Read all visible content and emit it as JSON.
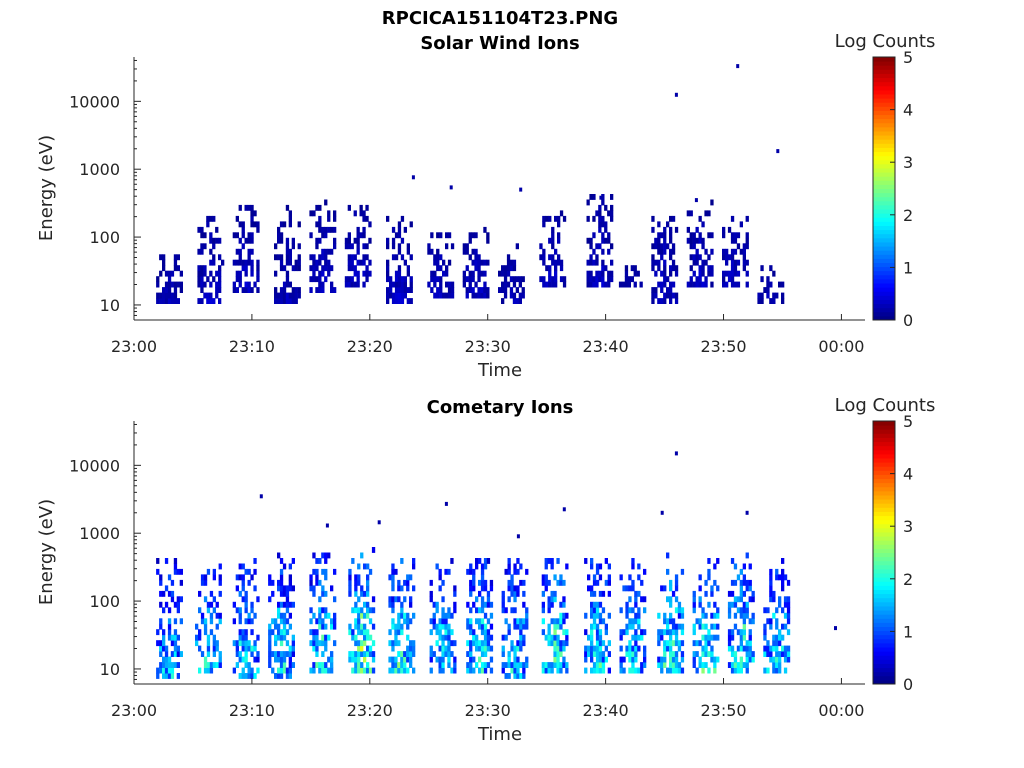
{
  "figure": {
    "title": "RPCICA151104T23.PNG"
  },
  "chart_data": [
    {
      "type": "heatmap",
      "title": "Solar Wind Ions",
      "xlabel": "Time",
      "ylabel": "Energy (eV)",
      "xticks": [
        "23:00",
        "23:10",
        "23:20",
        "23:30",
        "23:40",
        "23:50",
        "00:00"
      ],
      "xlim_minutes": [
        0,
        62
      ],
      "yscale": "log",
      "yticks": [
        "10",
        "100",
        "1000",
        "10000"
      ],
      "ylim": [
        6,
        45000
      ],
      "colorbar": {
        "label": "Log Counts",
        "range": [
          0,
          5
        ],
        "ticks": [
          "0",
          "1",
          "2",
          "3",
          "4",
          "5"
        ],
        "colormap": "jet"
      },
      "bursts": [
        {
          "t": 3.0,
          "lo": 11,
          "hi": 55,
          "level": 0.25
        },
        {
          "t": 6.5,
          "lo": 11,
          "hi": 200,
          "level": 0.3
        },
        {
          "t": 9.5,
          "lo": 15,
          "hi": 300,
          "level": 0.3
        },
        {
          "t": 13.0,
          "lo": 11,
          "hi": 280,
          "level": 0.25
        },
        {
          "t": 16.0,
          "lo": 15,
          "hi": 330,
          "level": 0.3
        },
        {
          "t": 19.0,
          "lo": 20,
          "hi": 310,
          "level": 0.3
        },
        {
          "t": 22.5,
          "lo": 11,
          "hi": 200,
          "level": 0.3
        },
        {
          "t": 26.0,
          "lo": 13,
          "hi": 110,
          "level": 0.3
        },
        {
          "t": 29.0,
          "lo": 13,
          "hi": 180,
          "level": 0.3
        },
        {
          "t": 32.0,
          "lo": 11,
          "hi": 85,
          "level": 0.25
        },
        {
          "t": 35.5,
          "lo": 17,
          "hi": 260,
          "level": 0.3
        },
        {
          "t": 39.5,
          "lo": 17,
          "hi": 420,
          "level": 0.3
        },
        {
          "t": 42.0,
          "lo": 17,
          "hi": 40,
          "level": 0.25
        },
        {
          "t": 45.0,
          "lo": 11,
          "hi": 220,
          "level": 0.3
        },
        {
          "t": 48.0,
          "lo": 17,
          "hi": 350,
          "level": 0.3
        },
        {
          "t": 51.0,
          "lo": 17,
          "hi": 260,
          "level": 0.3
        },
        {
          "t": 54.0,
          "lo": 11,
          "hi": 40,
          "level": 0.25
        }
      ],
      "points": [
        {
          "t": 46.0,
          "e": 12500
        },
        {
          "t": 51.2,
          "e": 33000
        },
        {
          "t": 54.6,
          "e": 1850
        },
        {
          "t": 23.7,
          "e": 760
        },
        {
          "t": 26.9,
          "e": 540
        },
        {
          "t": 32.8,
          "e": 500
        },
        {
          "t": 39.6,
          "e": 380
        },
        {
          "t": 47.7,
          "e": 350
        }
      ]
    },
    {
      "type": "heatmap",
      "title": "Cometary Ions",
      "xlabel": "Time",
      "ylabel": "Energy (eV)",
      "xticks": [
        "23:00",
        "23:10",
        "23:20",
        "23:30",
        "23:40",
        "23:50",
        "00:00"
      ],
      "xlim_minutes": [
        0,
        62
      ],
      "yscale": "log",
      "yticks": [
        "10",
        "100",
        "1000",
        "10000"
      ],
      "ylim": [
        6,
        45000
      ],
      "colorbar": {
        "label": "Log Counts",
        "range": [
          0,
          5
        ],
        "ticks": [
          "0",
          "1",
          "2",
          "3",
          "4",
          "5"
        ],
        "colormap": "jet"
      },
      "bursts": [
        {
          "t": 3.0,
          "lo": 7,
          "hi": 420,
          "level": 1.2
        },
        {
          "t": 6.3,
          "lo": 8,
          "hi": 330,
          "level": 1.4
        },
        {
          "t": 9.5,
          "lo": 7,
          "hi": 500,
          "level": 1.4
        },
        {
          "t": 12.5,
          "lo": 7,
          "hi": 520,
          "level": 1.3
        },
        {
          "t": 16.0,
          "lo": 8,
          "hi": 520,
          "level": 1.5
        },
        {
          "t": 19.3,
          "lo": 8,
          "hi": 650,
          "level": 1.8
        },
        {
          "t": 22.7,
          "lo": 8,
          "hi": 560,
          "level": 1.6
        },
        {
          "t": 26.2,
          "lo": 8,
          "hi": 420,
          "level": 1.5
        },
        {
          "t": 29.3,
          "lo": 8,
          "hi": 420,
          "level": 1.5
        },
        {
          "t": 32.3,
          "lo": 7,
          "hi": 420,
          "level": 1.3
        },
        {
          "t": 35.7,
          "lo": 9,
          "hi": 560,
          "level": 1.7
        },
        {
          "t": 39.3,
          "lo": 9,
          "hi": 560,
          "level": 1.5
        },
        {
          "t": 42.3,
          "lo": 9,
          "hi": 460,
          "level": 1.4
        },
        {
          "t": 45.5,
          "lo": 8,
          "hi": 560,
          "level": 1.6
        },
        {
          "t": 48.5,
          "lo": 8,
          "hi": 420,
          "level": 1.7
        },
        {
          "t": 51.5,
          "lo": 8,
          "hi": 560,
          "level": 1.7
        },
        {
          "t": 54.5,
          "lo": 8,
          "hi": 420,
          "level": 1.4
        }
      ],
      "points": [
        {
          "t": 10.8,
          "e": 3500
        },
        {
          "t": 16.4,
          "e": 1300
        },
        {
          "t": 20.8,
          "e": 1450
        },
        {
          "t": 26.5,
          "e": 2700
        },
        {
          "t": 32.6,
          "e": 900
        },
        {
          "t": 36.5,
          "e": 2250
        },
        {
          "t": 44.8,
          "e": 2000
        },
        {
          "t": 46.0,
          "e": 15000
        },
        {
          "t": 52.0,
          "e": 2000
        },
        {
          "t": 59.5,
          "e": 40
        }
      ]
    }
  ]
}
